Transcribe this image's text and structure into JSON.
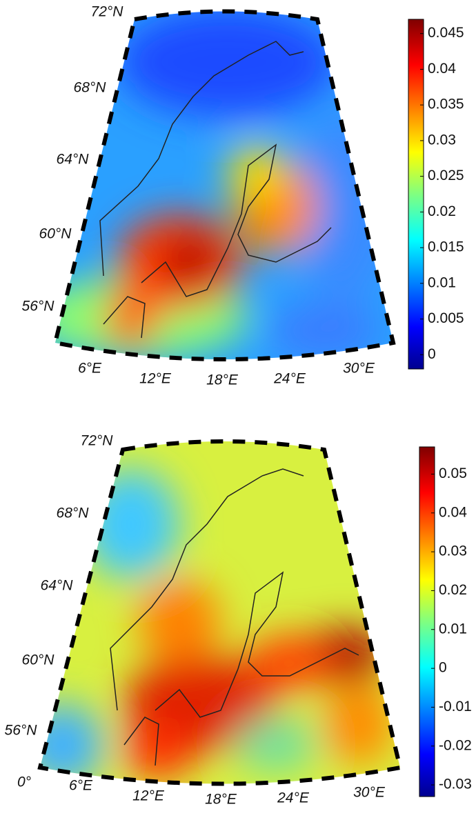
{
  "panels": [
    {
      "lat_labels": [
        "72°N",
        "68°N",
        "64°N",
        "60°N",
        "56°N"
      ],
      "lon_labels": [
        "6°E",
        "12°E",
        "18°E",
        "24°E",
        "30°E"
      ],
      "colorbar": {
        "clim": [
          -0.002,
          0.047
        ],
        "ticks": [
          0,
          0.005,
          0.01,
          0.015,
          0.02,
          0.025,
          0.03,
          0.035,
          0.04,
          0.045
        ]
      }
    },
    {
      "lat_labels": [
        "72°N",
        "68°N",
        "64°N",
        "60°N",
        "56°N"
      ],
      "corner_label": "0°",
      "lon_labels": [
        "6°E",
        "12°E",
        "18°E",
        "24°E",
        "30°E"
      ],
      "colorbar": {
        "clim": [
          -0.033,
          0.057
        ],
        "ticks": [
          -0.03,
          -0.02,
          -0.01,
          0,
          0.01,
          0.02,
          0.03,
          0.04,
          0.05
        ]
      }
    }
  ]
}
